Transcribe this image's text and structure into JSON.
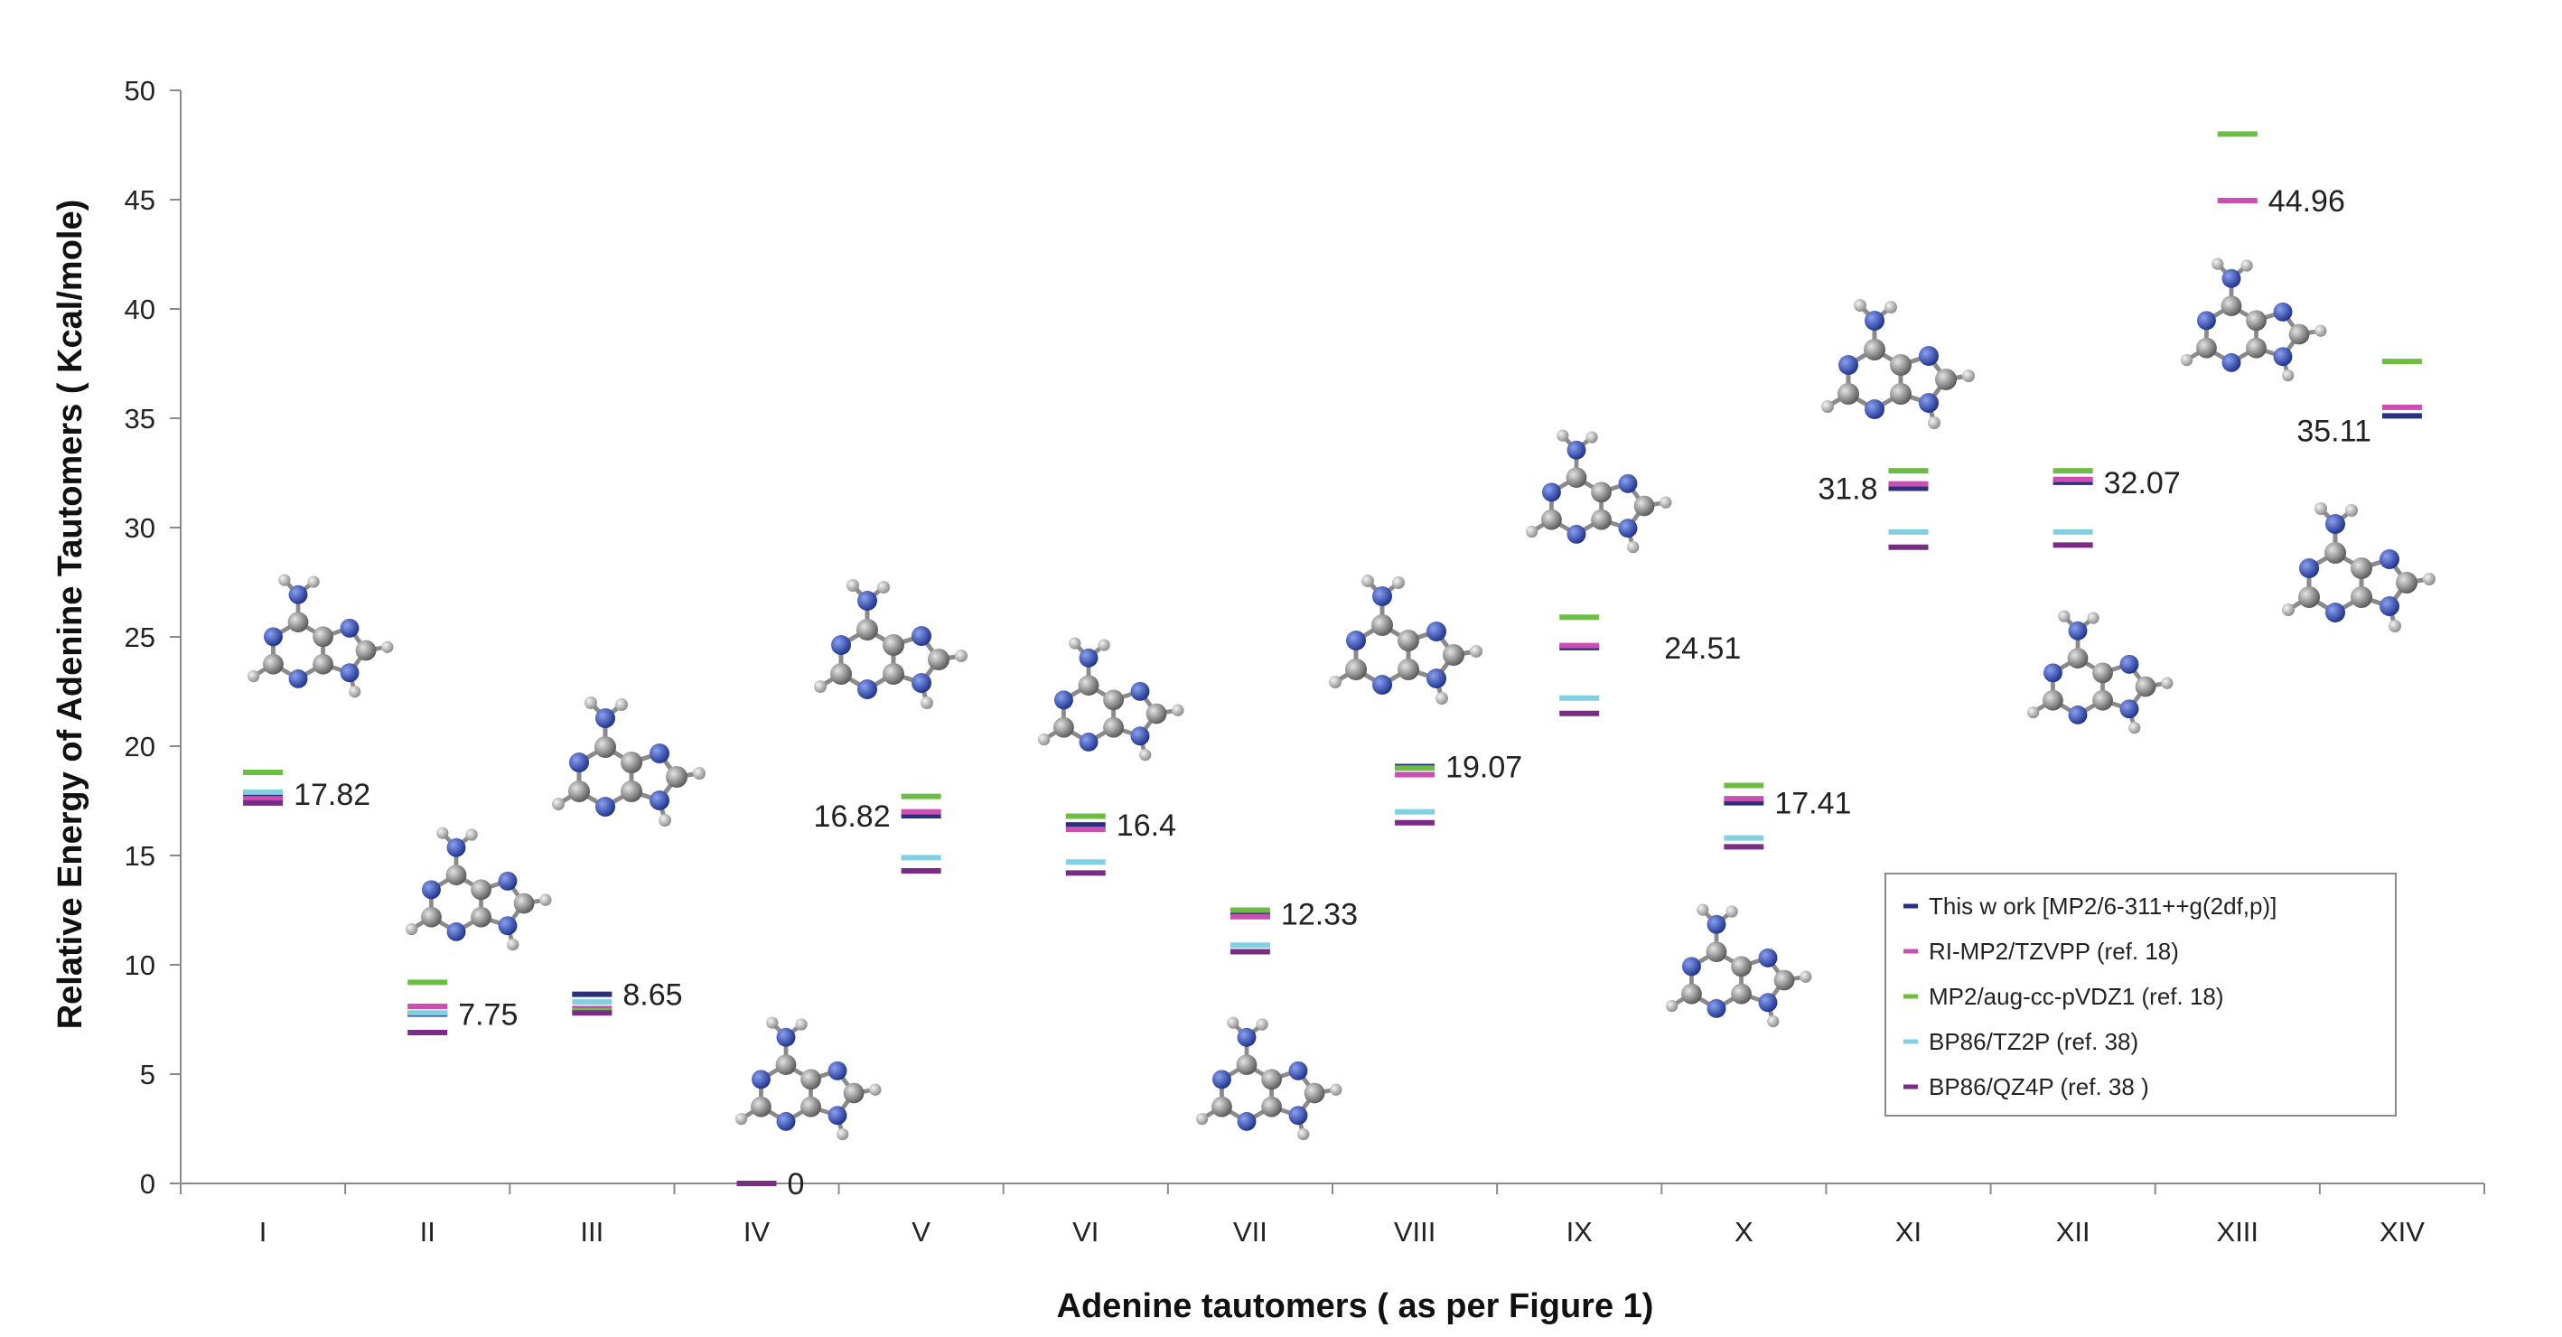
{
  "chart_data": {
    "type": "scatter",
    "title": "",
    "xlabel": "Adenine tautomers ( as per Figure 1)",
    "ylabel": "Relative Energy of Adenine Tautomers ( Kcal/mole)",
    "ylim": [
      0,
      50
    ],
    "yticks": [
      0,
      5,
      10,
      15,
      20,
      25,
      30,
      35,
      40,
      45,
      50
    ],
    "categories": [
      "I",
      "II",
      "III",
      "IV",
      "V",
      "VI",
      "VII",
      "VIII",
      "IX",
      "X",
      "XI",
      "XII",
      "XIII",
      "XIV"
    ],
    "grid": false,
    "legend_position": "bottom-right",
    "series": [
      {
        "name": "This w ork [MP2/6-311++g(2df,p)]",
        "color": "#2b2f7f",
        "values": [
          17.82,
          7.75,
          8.65,
          0,
          16.82,
          16.4,
          12.33,
          19.07,
          24.51,
          17.41,
          31.8,
          32.07,
          null,
          35.11
        ]
      },
      {
        "name": "RI-MP2/TZVPP (ref. 18)",
        "color": "#c94fb0",
        "values": [
          17.6,
          8.1,
          8.0,
          0,
          17.0,
          16.2,
          12.2,
          18.7,
          24.6,
          17.6,
          32.0,
          32.2,
          44.96,
          35.5
        ]
      },
      {
        "name": "MP2/aug-cc-pVDZ1 (ref. 18)",
        "color": "#6dbd45",
        "values": [
          18.8,
          9.2,
          7.9,
          null,
          17.7,
          16.8,
          12.5,
          19.0,
          25.9,
          18.2,
          32.6,
          32.6,
          48.0,
          37.6
        ]
      },
      {
        "name": "BP86/TZ2P (ref. 38)",
        "color": "#7fd0e2",
        "values": [
          17.9,
          7.8,
          8.3,
          null,
          14.9,
          14.7,
          10.9,
          17.0,
          22.2,
          15.8,
          29.8,
          29.8,
          null,
          null
        ]
      },
      {
        "name": "BP86/QZ4P (ref. 38 )",
        "color": "#7a2b83",
        "values": [
          17.4,
          6.9,
          7.8,
          0,
          14.3,
          14.2,
          10.6,
          16.5,
          21.5,
          15.4,
          29.1,
          29.2,
          null,
          null
        ]
      }
    ],
    "data_labels": [
      "17.82",
      "7.75",
      "8.65",
      "0",
      "16.82",
      "16.4",
      "12.33",
      "19.07",
      "24.51",
      "17.41",
      "31.8",
      "32.07",
      "44.96",
      "35.11"
    ]
  }
}
